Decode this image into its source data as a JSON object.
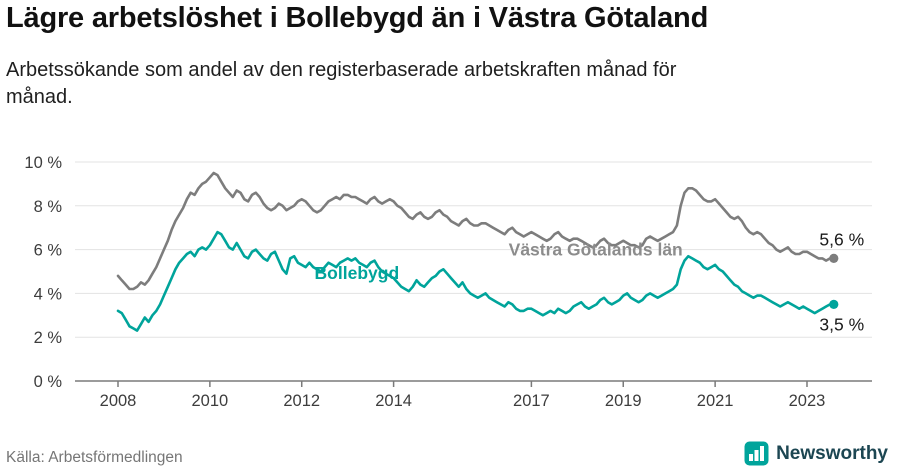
{
  "header": {
    "title": "Lägre arbetslöshet i Bollebygd än i Västra Götaland",
    "subtitle": "Arbetssökande som andel av den registerbaserade arbetskraften månad för månad."
  },
  "footer": {
    "source": "Källa: Arbetsförmedlingen",
    "brand": "Newsworthy"
  },
  "colors": {
    "bollebygd": "#00a49b",
    "region": "#7d7d7d",
    "region_label": "#8c8c8c",
    "grid": "#e3e3e3",
    "axis": "#7a7a7a",
    "tick_text": "#3d3d3d",
    "value_text": "#1a1a1a"
  },
  "chart_data": {
    "type": "line",
    "title": "Lägre arbetslöshet i Bollebygd än i Västra Götaland",
    "subtitle": "Arbetssökande som andel av den registerbaserade arbetskraften månad för månad.",
    "unit": "percent",
    "x_start": 2008.0,
    "points_per_year": 12,
    "ylim": [
      0,
      10
    ],
    "yticks": [
      0,
      2,
      4,
      6,
      8,
      10
    ],
    "ytick_labels": [
      "0 %",
      "2 %",
      "4 %",
      "6 %",
      "8 %",
      "10 %"
    ],
    "xticks": [
      2008,
      2010,
      2012,
      2014,
      2017,
      2019,
      2021,
      2023
    ],
    "xtick_labels": [
      "2008",
      "2010",
      "2012",
      "2014",
      "2017",
      "2019",
      "2021",
      "2023"
    ],
    "grid": true,
    "legend_position": "inline-labels",
    "series": [
      {
        "id": "region",
        "name": "Västra Götalands län",
        "color_key": "region",
        "end_label": "5,6 %",
        "label_offset_y": -13,
        "values": [
          4.8,
          4.6,
          4.4,
          4.2,
          4.2,
          4.3,
          4.5,
          4.4,
          4.6,
          4.9,
          5.2,
          5.6,
          6.0,
          6.4,
          6.9,
          7.3,
          7.6,
          7.9,
          8.3,
          8.6,
          8.5,
          8.8,
          9.0,
          9.1,
          9.3,
          9.5,
          9.4,
          9.1,
          8.8,
          8.6,
          8.4,
          8.7,
          8.6,
          8.3,
          8.2,
          8.5,
          8.6,
          8.4,
          8.1,
          7.9,
          7.8,
          7.9,
          8.1,
          8.0,
          7.8,
          7.9,
          8.0,
          8.2,
          8.3,
          8.2,
          8.0,
          7.8,
          7.7,
          7.8,
          8.0,
          8.2,
          8.3,
          8.4,
          8.3,
          8.5,
          8.5,
          8.4,
          8.4,
          8.3,
          8.2,
          8.1,
          8.3,
          8.4,
          8.2,
          8.1,
          8.2,
          8.3,
          8.2,
          8.0,
          7.9,
          7.7,
          7.5,
          7.4,
          7.6,
          7.7,
          7.5,
          7.4,
          7.5,
          7.7,
          7.8,
          7.6,
          7.5,
          7.3,
          7.2,
          7.1,
          7.3,
          7.4,
          7.2,
          7.1,
          7.1,
          7.2,
          7.2,
          7.1,
          7.0,
          6.9,
          6.8,
          6.7,
          6.9,
          7.0,
          6.8,
          6.7,
          6.6,
          6.7,
          6.8,
          6.7,
          6.6,
          6.5,
          6.4,
          6.5,
          6.7,
          6.8,
          6.6,
          6.5,
          6.4,
          6.5,
          6.5,
          6.4,
          6.3,
          6.2,
          6.1,
          6.2,
          6.4,
          6.5,
          6.3,
          6.2,
          6.2,
          6.3,
          6.4,
          6.3,
          6.2,
          6.2,
          6.1,
          6.2,
          6.5,
          6.6,
          6.5,
          6.4,
          6.5,
          6.6,
          6.7,
          6.8,
          7.1,
          8.0,
          8.6,
          8.8,
          8.8,
          8.7,
          8.5,
          8.3,
          8.2,
          8.2,
          8.3,
          8.1,
          7.9,
          7.7,
          7.5,
          7.4,
          7.5,
          7.3,
          7.0,
          6.8,
          6.7,
          6.8,
          6.7,
          6.5,
          6.3,
          6.2,
          6.0,
          5.9,
          6.0,
          6.1,
          5.9,
          5.8,
          5.8,
          5.9,
          5.9,
          5.8,
          5.7,
          5.6,
          5.6,
          5.5,
          5.6,
          5.6
        ]
      },
      {
        "id": "bollebygd",
        "name": "Bollebygd",
        "color_key": "bollebygd",
        "end_label": "3,5 %",
        "label_offset_y": 26,
        "values": [
          3.2,
          3.1,
          2.8,
          2.5,
          2.4,
          2.3,
          2.6,
          2.9,
          2.7,
          3.0,
          3.2,
          3.5,
          3.9,
          4.3,
          4.7,
          5.1,
          5.4,
          5.6,
          5.8,
          5.9,
          5.7,
          6.0,
          6.1,
          6.0,
          6.2,
          6.5,
          6.8,
          6.7,
          6.4,
          6.1,
          6.0,
          6.3,
          6.0,
          5.7,
          5.6,
          5.9,
          6.0,
          5.8,
          5.6,
          5.5,
          5.8,
          5.9,
          5.5,
          5.1,
          4.9,
          5.6,
          5.7,
          5.4,
          5.3,
          5.2,
          5.4,
          5.2,
          5.1,
          5.0,
          5.2,
          5.4,
          5.3,
          5.2,
          5.4,
          5.5,
          5.6,
          5.5,
          5.6,
          5.4,
          5.3,
          5.2,
          5.4,
          5.5,
          5.2,
          5.0,
          4.9,
          4.8,
          4.7,
          4.5,
          4.3,
          4.2,
          4.1,
          4.3,
          4.6,
          4.4,
          4.3,
          4.5,
          4.7,
          4.8,
          5.0,
          5.1,
          4.9,
          4.7,
          4.5,
          4.3,
          4.5,
          4.2,
          4.0,
          3.9,
          3.8,
          3.9,
          4.0,
          3.8,
          3.7,
          3.6,
          3.5,
          3.4,
          3.6,
          3.5,
          3.3,
          3.2,
          3.2,
          3.3,
          3.3,
          3.2,
          3.1,
          3.0,
          3.1,
          3.2,
          3.1,
          3.3,
          3.2,
          3.1,
          3.2,
          3.4,
          3.5,
          3.6,
          3.4,
          3.3,
          3.4,
          3.5,
          3.7,
          3.8,
          3.6,
          3.5,
          3.6,
          3.7,
          3.9,
          4.0,
          3.8,
          3.7,
          3.6,
          3.7,
          3.9,
          4.0,
          3.9,
          3.8,
          3.9,
          4.0,
          4.1,
          4.2,
          4.4,
          5.1,
          5.5,
          5.7,
          5.6,
          5.5,
          5.4,
          5.2,
          5.1,
          5.2,
          5.3,
          5.1,
          5.0,
          4.8,
          4.6,
          4.4,
          4.3,
          4.1,
          4.0,
          3.9,
          3.8,
          3.9,
          3.9,
          3.8,
          3.7,
          3.6,
          3.5,
          3.4,
          3.5,
          3.6,
          3.5,
          3.4,
          3.3,
          3.4,
          3.3,
          3.2,
          3.1,
          3.2,
          3.3,
          3.4,
          3.5,
          3.5
        ]
      }
    ],
    "annotations": [
      {
        "id": "bollebygd",
        "text": "Bollebygd",
        "x": 2013.2,
        "y": 4.93,
        "color_key": "bollebygd"
      },
      {
        "id": "region",
        "text": "Västra Götalands län",
        "x": 2018.4,
        "y": 6.0,
        "color_key": "region_label"
      }
    ]
  }
}
